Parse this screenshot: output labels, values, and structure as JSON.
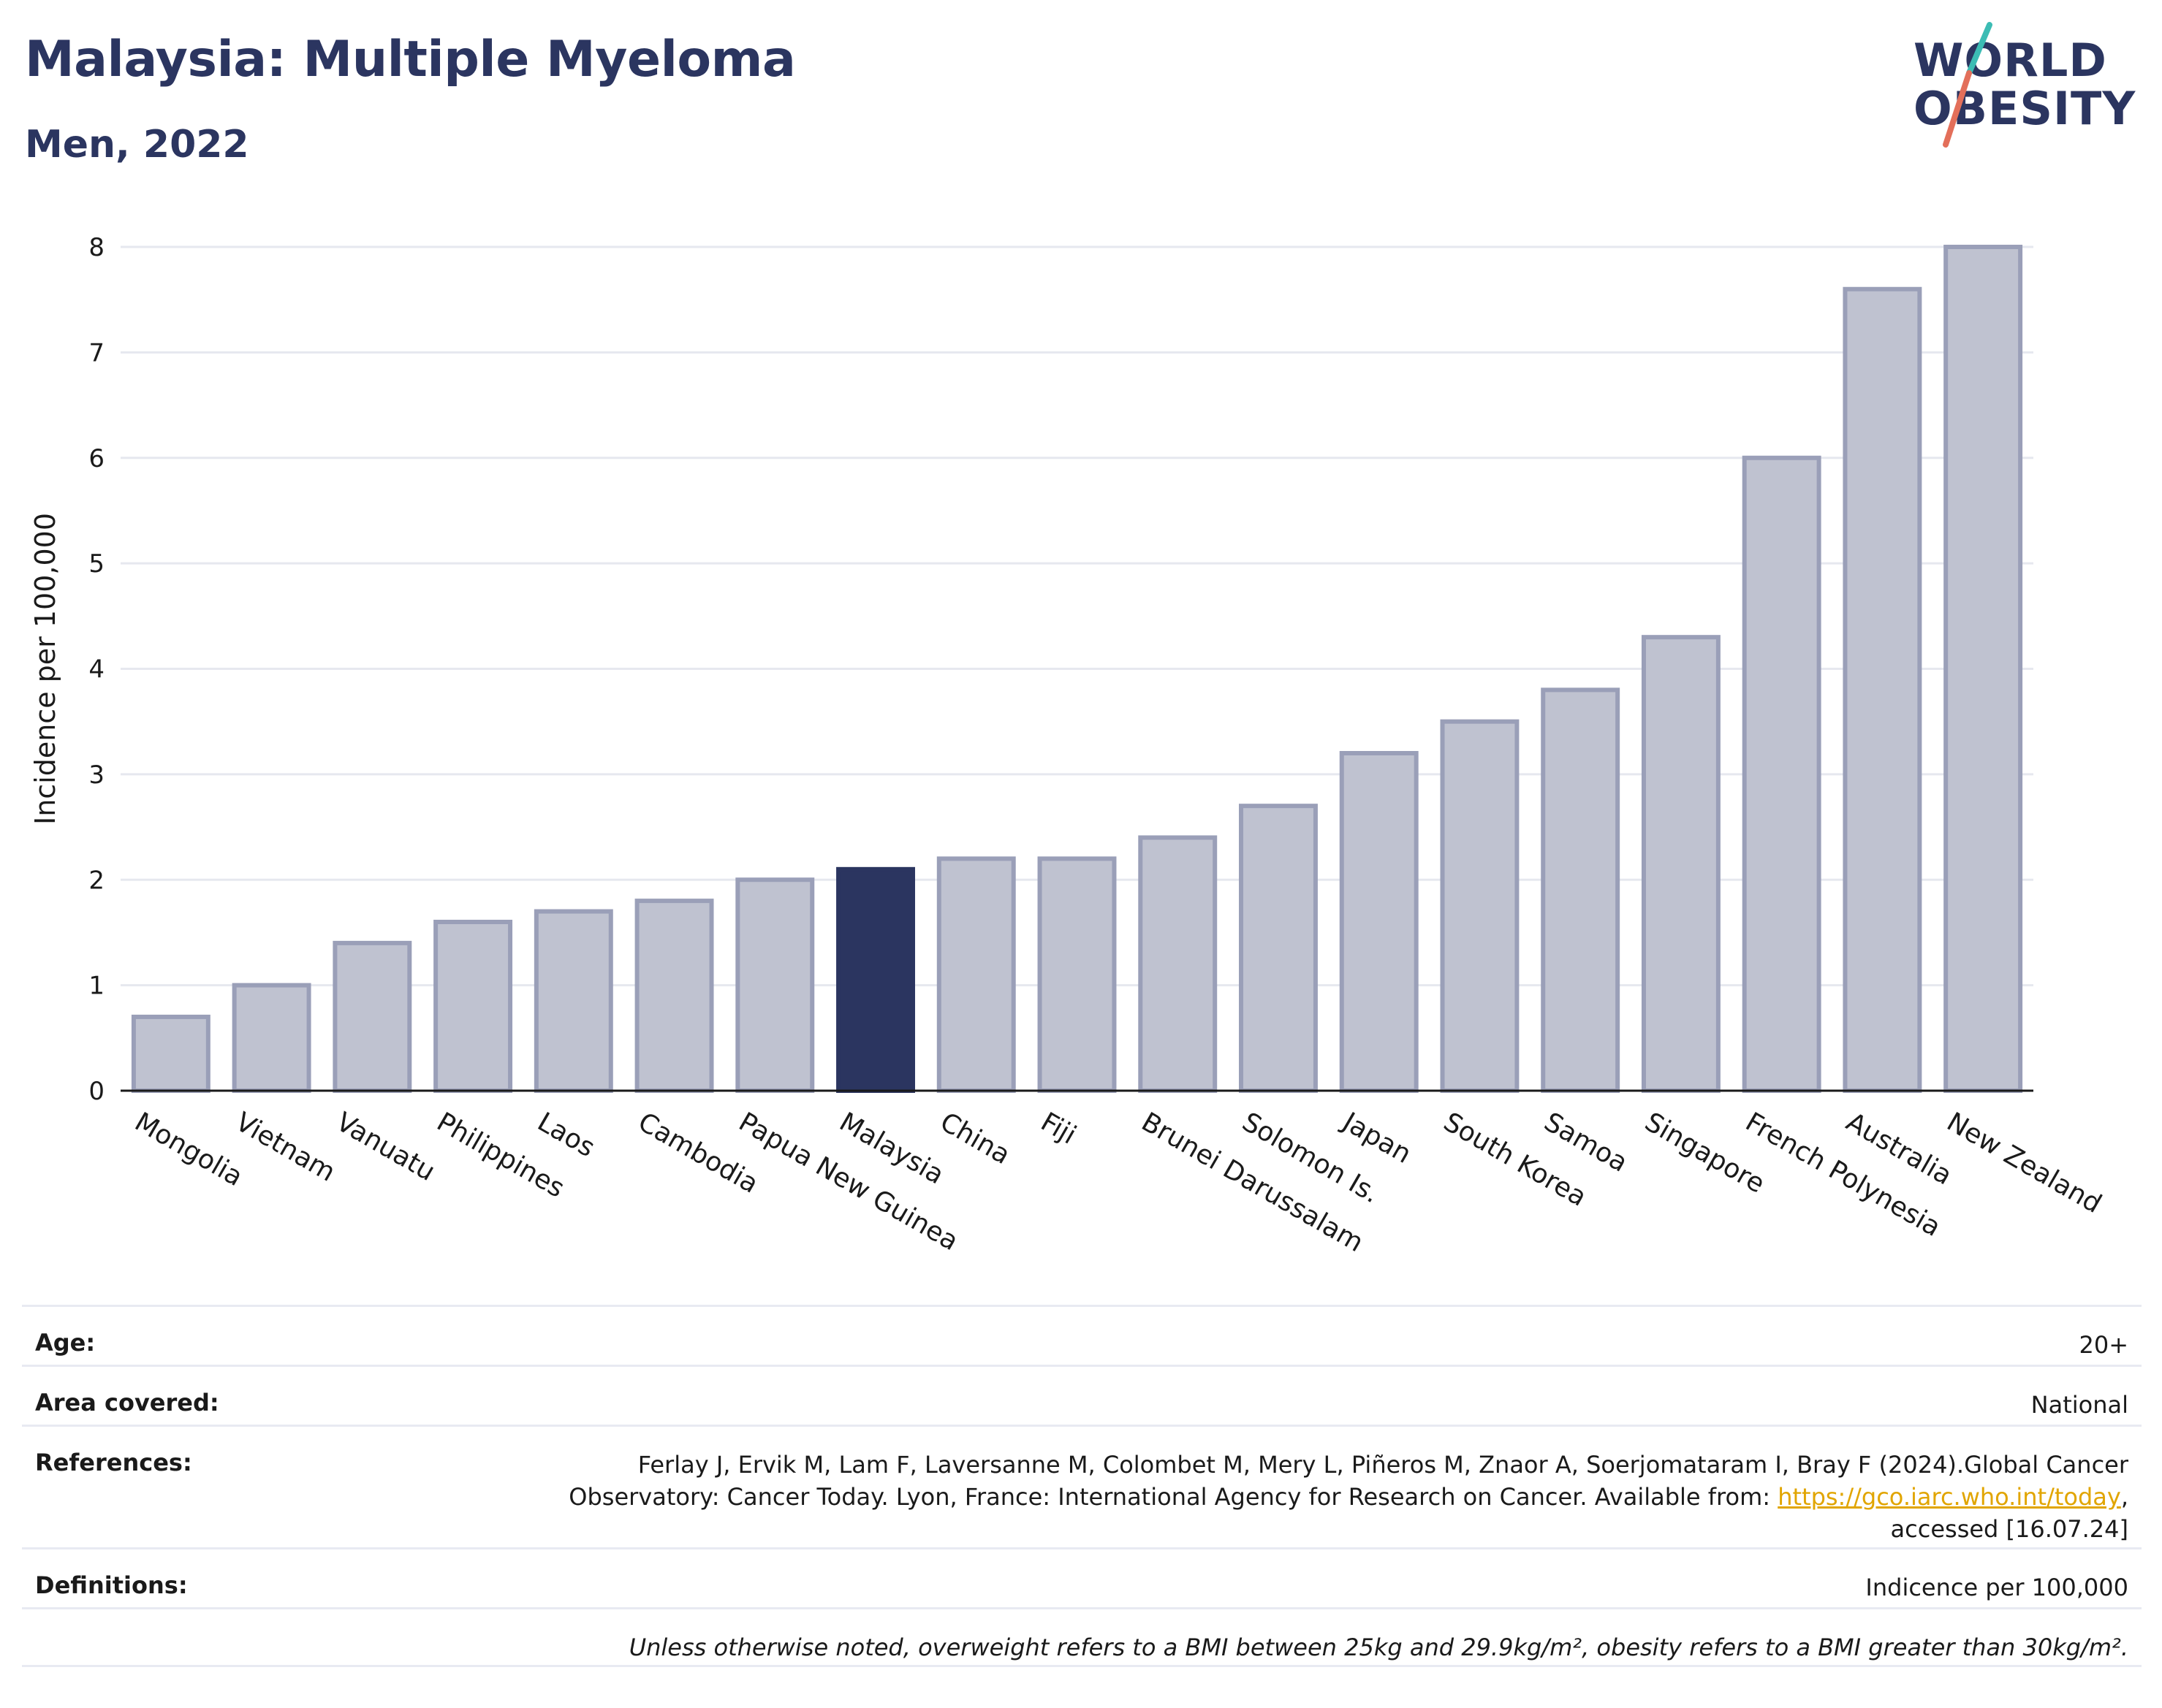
{
  "header": {
    "title": "Malaysia: Multiple Myeloma",
    "subtitle": "Men, 2022",
    "logo_line1": "WORLD",
    "logo_line2": "OBESITY"
  },
  "chart_data": {
    "type": "bar",
    "title": "Malaysia: Multiple Myeloma",
    "subtitle": "Men, 2022",
    "xlabel": "",
    "ylabel": "Incidence per 100,000",
    "ylim": [
      0,
      8
    ],
    "yticks": [
      0,
      1,
      2,
      3,
      4,
      5,
      6,
      7,
      8
    ],
    "grid": true,
    "categories": [
      "Mongolia",
      "Vietnam",
      "Vanuatu",
      "Philippines",
      "Laos",
      "Cambodia",
      "Papua New Guinea",
      "Malaysia",
      "China",
      "Fiji",
      "Brunei Darussalam",
      "Solomon Is.",
      "Japan",
      "South Korea",
      "Samoa",
      "Singapore",
      "French Polynesia",
      "Australia",
      "New Zealand"
    ],
    "values": [
      0.7,
      1.0,
      1.4,
      1.6,
      1.7,
      1.8,
      2.0,
      2.1,
      2.2,
      2.2,
      2.4,
      2.7,
      3.2,
      3.5,
      3.8,
      4.3,
      6.0,
      7.6,
      8.0
    ],
    "highlight": "Malaysia",
    "colors": {
      "bar": "#bfc2d0",
      "bar_border": "#9a9fb8",
      "highlight": "#2b3560",
      "grid": "#e6e8ef"
    }
  },
  "meta": {
    "age_label": "Age:",
    "age_value": "20+",
    "area_label": "Area covered:",
    "area_value": "National",
    "ref_label": "References:",
    "ref_line1": "Ferlay J, Ervik M, Lam F, Laversanne M, Colombet M, Mery L, Piñeros M, Znaor A, Soerjomataram I, Bray F (2024).Global Cancer",
    "ref_line2_pre": "Observatory: Cancer Today. Lyon, France: International Agency for Research on Cancer. Available from: ",
    "ref_link": "https://gco.iarc.who.int/today",
    "ref_line2_post": ",",
    "ref_line3": "accessed [16.07.24]",
    "def_label": "Definitions:",
    "def_value": "Indicence per 100,000",
    "note": "Unless otherwise noted, overweight refers to a BMI between 25kg and 29.9kg/m², obesity refers to a BMI greater than 30kg/m²."
  }
}
